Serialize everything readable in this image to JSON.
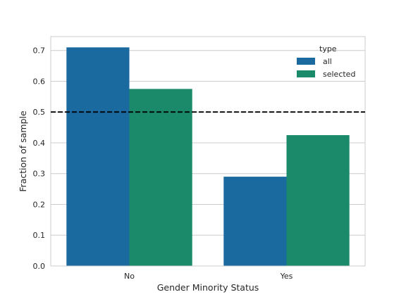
{
  "chart_data": {
    "type": "bar",
    "categories": [
      "No",
      "Yes"
    ],
    "series": [
      {
        "name": "all",
        "values": [
          0.71,
          0.29
        ],
        "color": "#1a6aa0"
      },
      {
        "name": "selected",
        "values": [
          0.575,
          0.425
        ],
        "color": "#1a8a6a"
      }
    ],
    "xlabel": "Gender Minority Status",
    "ylabel": "Fraction of sample",
    "ylim": [
      0,
      0.745
    ],
    "yticks": [
      "0.0",
      "0.1",
      "0.2",
      "0.3",
      "0.4",
      "0.5",
      "0.6",
      "0.7"
    ],
    "reference_line": {
      "value": 0.5,
      "style": "dashed",
      "color": "#000000"
    },
    "legend": {
      "title": "type",
      "placement": "top-right"
    },
    "grid": "horizontal"
  }
}
